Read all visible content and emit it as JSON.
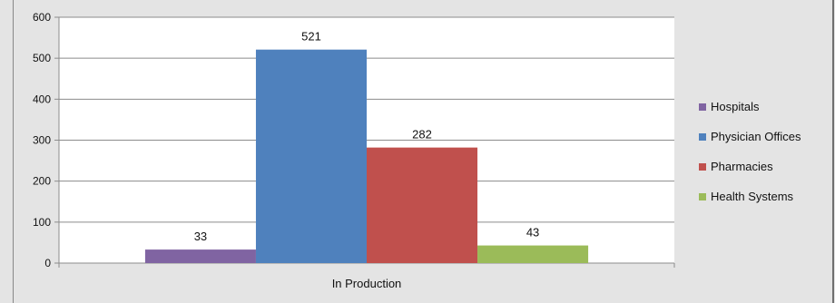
{
  "chart_data": {
    "type": "bar",
    "categories": [
      "In Production"
    ],
    "series": [
      {
        "name": "Hospitals",
        "values": [
          33
        ],
        "color": "#8064a2"
      },
      {
        "name": "Physician Offices",
        "values": [
          521
        ],
        "color": "#4f81bd"
      },
      {
        "name": "Pharmacies",
        "values": [
          282
        ],
        "color": "#c0504d"
      },
      {
        "name": "Health Systems",
        "values": [
          43
        ],
        "color": "#9bbb59"
      }
    ],
    "y_ticks": [
      "0",
      "100",
      "200",
      "300",
      "400",
      "500",
      "600"
    ],
    "ylim": [
      0,
      600
    ],
    "grid": true,
    "legend_position": "right",
    "data_labels": true,
    "title": "",
    "xlabel": "",
    "ylabel": ""
  }
}
